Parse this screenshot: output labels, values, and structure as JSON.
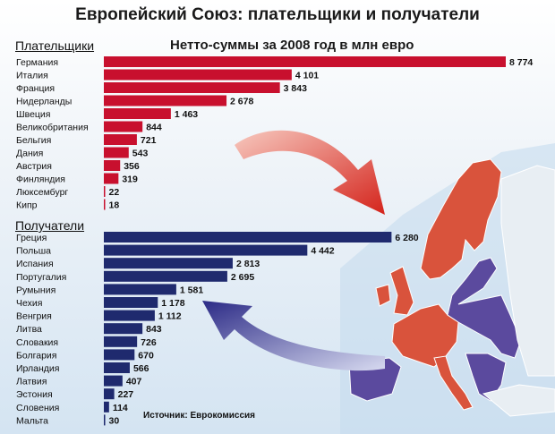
{
  "title": "Европейский Союз: плательщики и получатели",
  "subtitle": "Нетто-суммы за 2008 год в млн евро",
  "source": "Источник: Еврокомиссия",
  "colors": {
    "payers": "#c8102e",
    "recipients": "#1f2a6e",
    "map_payers": "#d9533c",
    "map_recipients": "#5b4a9e"
  },
  "chart_data": [
    {
      "type": "bar",
      "orientation": "horizontal",
      "section_label": "Плательщики",
      "categories": [
        "Германия",
        "Италия",
        "Франция",
        "Нидерланды",
        "Швеция",
        "Великобритания",
        "Бельгия",
        "Дания",
        "Австрия",
        "Финляндия",
        "Люксембург",
        "Кипр"
      ],
      "values": [
        8774,
        4101,
        3843,
        2678,
        1463,
        844,
        721,
        543,
        356,
        319,
        22,
        18
      ],
      "labels": [
        "8 774",
        "4 101",
        "3 843",
        "2 678",
        "1 463",
        "844",
        "721",
        "543",
        "356",
        "319",
        "22",
        "18"
      ],
      "color": "#c8102e"
    },
    {
      "type": "bar",
      "orientation": "horizontal",
      "section_label": "Получатели",
      "categories": [
        "Греция",
        "Польша",
        "Испания",
        "Португалия",
        "Румыния",
        "Чехия",
        "Венгрия",
        "Литва",
        "Словакия",
        "Болгария",
        "Ирландия",
        "Латвия",
        "Эстония",
        "Словения",
        "Мальта"
      ],
      "values": [
        6280,
        4442,
        2813,
        2695,
        1581,
        1178,
        1112,
        843,
        726,
        670,
        566,
        407,
        227,
        114,
        30
      ],
      "labels": [
        "6 280",
        "4 442",
        "2 813",
        "2 695",
        "1 581",
        "1 178",
        "1 112",
        "843",
        "726",
        "670",
        "566",
        "407",
        "227",
        "114",
        "30"
      ],
      "color": "#1f2a6e"
    }
  ]
}
